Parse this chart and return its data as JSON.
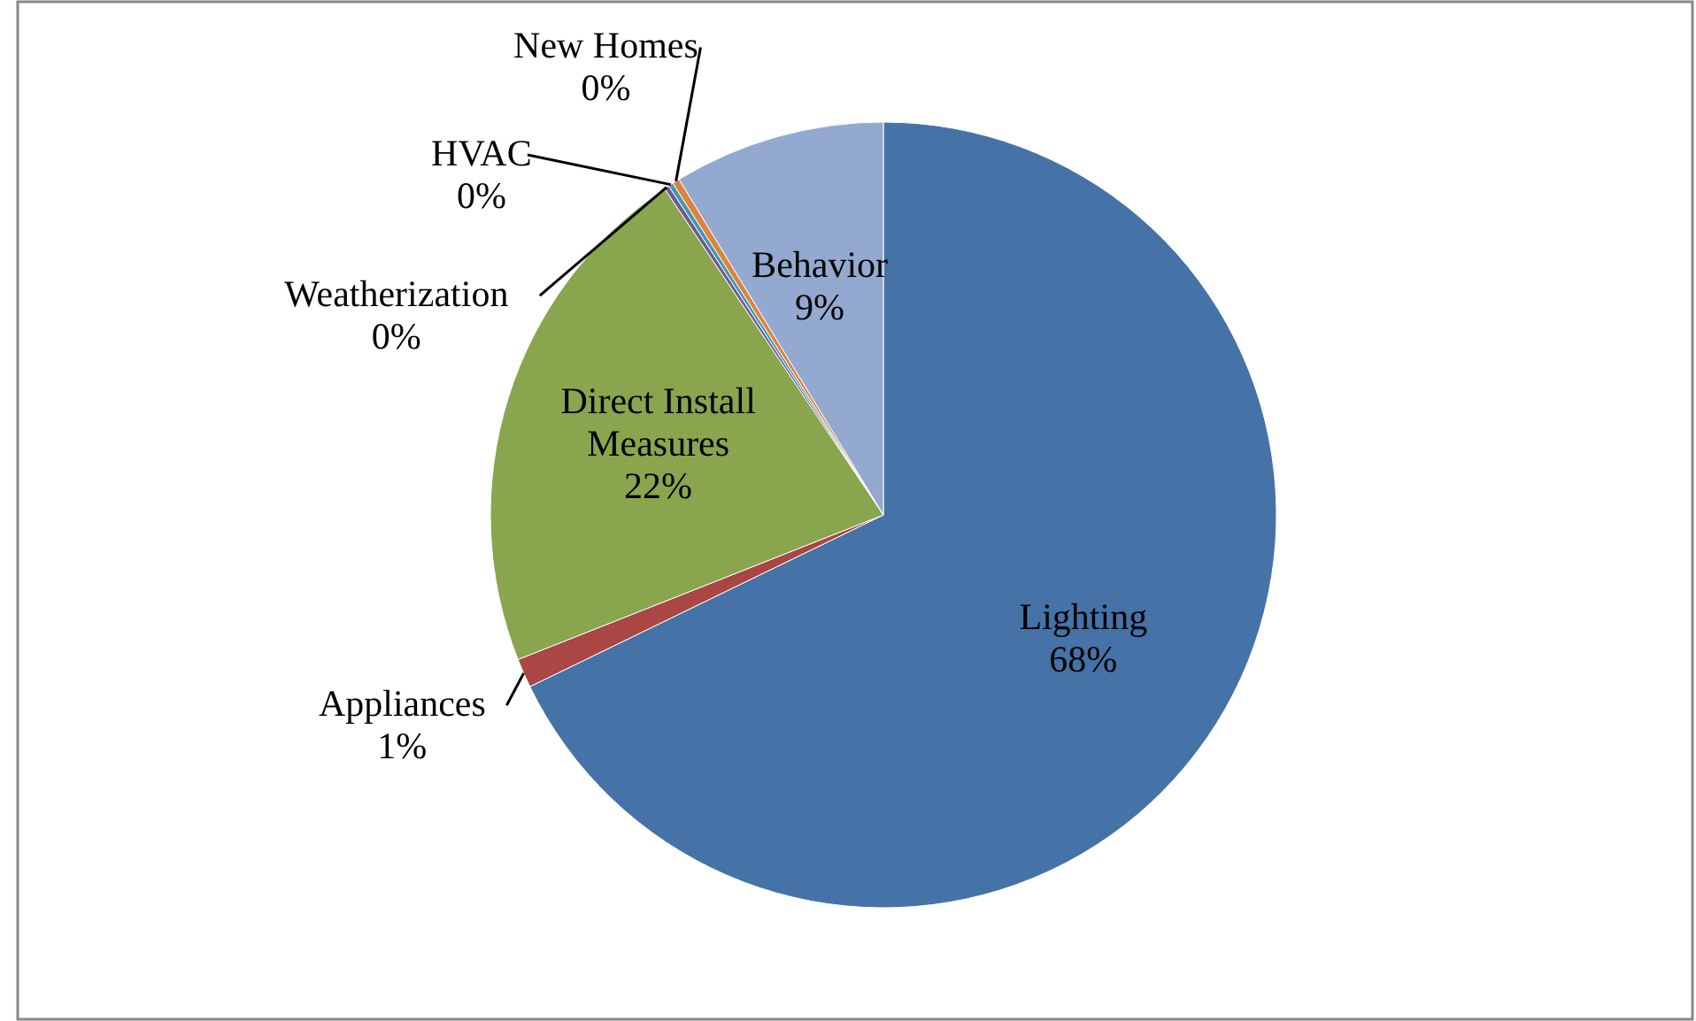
{
  "chart_data": {
    "type": "pie",
    "categories": [
      "Lighting",
      "Appliances",
      "Direct Install Measures",
      "Weatherization",
      "HVAC",
      "New Homes",
      "Behavior"
    ],
    "values": [
      67.8,
      1.2,
      21.6,
      0.2,
      0.2,
      0.3,
      8.7
    ],
    "value_labels": [
      "68%",
      "1%",
      "22%",
      "0%",
      "0%",
      "0%",
      "9%"
    ],
    "colors": [
      "#4572a7",
      "#aa4643",
      "#89a54e",
      "#71588f",
      "#4198af",
      "#db843d",
      "#93a9cf"
    ]
  }
}
